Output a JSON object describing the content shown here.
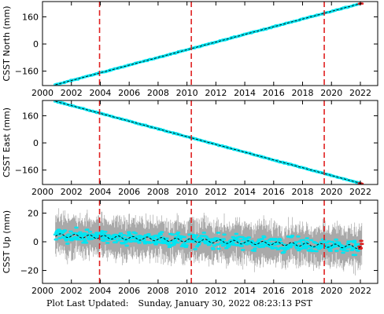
{
  "figure": {
    "footer_label": "Plot Last Updated:",
    "footer_timestamp": "Sunday, January 30, 2022 08:23:13 PST"
  },
  "colors": {
    "data": "#00e5f2",
    "errorbar": "#a9a9a9",
    "fit": "#000000",
    "breaks": "#e02020",
    "recent": "#e02020"
  },
  "chart_data": [
    {
      "type": "scatter",
      "ylabel": "CSST North (mm)",
      "xlim": [
        2000,
        2023.2
      ],
      "ylim": [
        -245,
        250
      ],
      "xticks": [
        2000,
        2002,
        2004,
        2006,
        2008,
        2010,
        2012,
        2014,
        2016,
        2018,
        2020,
        2022
      ],
      "yticks": [
        -160,
        0,
        160
      ],
      "trend": {
        "x": [
          2000.9,
          2022.1
        ],
        "y": [
          -240,
          240
        ]
      },
      "breaks_x": [
        2003.95,
        2010.3,
        2019.5
      ],
      "noise_mm": 3
    },
    {
      "type": "scatter",
      "ylabel": "CSST East (mm)",
      "xlim": [
        2000,
        2023.2
      ],
      "ylim": [
        -245,
        250
      ],
      "xticks": [
        2000,
        2002,
        2004,
        2006,
        2008,
        2010,
        2012,
        2014,
        2016,
        2018,
        2020,
        2022
      ],
      "yticks": [
        -160,
        0,
        160
      ],
      "trend": {
        "x": [
          2000.9,
          2022.1
        ],
        "y": [
          245,
          -240
        ]
      },
      "breaks_x": [
        2003.95,
        2010.3,
        2019.5
      ],
      "noise_mm": 3
    },
    {
      "type": "scatter",
      "ylabel": "CSST Up (mm)",
      "xlim": [
        2000,
        2023.2
      ],
      "ylim": [
        -29,
        29
      ],
      "xticks": [
        2000,
        2002,
        2004,
        2006,
        2008,
        2010,
        2012,
        2014,
        2016,
        2018,
        2020,
        2022
      ],
      "yticks": [
        -20,
        0,
        20
      ],
      "trend": {
        "x": [
          2000.9,
          2022.1
        ],
        "y": [
          4.5,
          -3.5
        ]
      },
      "seasonal_amplitude_mm": 1.2,
      "breaks_x": [
        2003.95,
        2010.3,
        2019.5
      ],
      "noise_mm": 4.5
    }
  ]
}
